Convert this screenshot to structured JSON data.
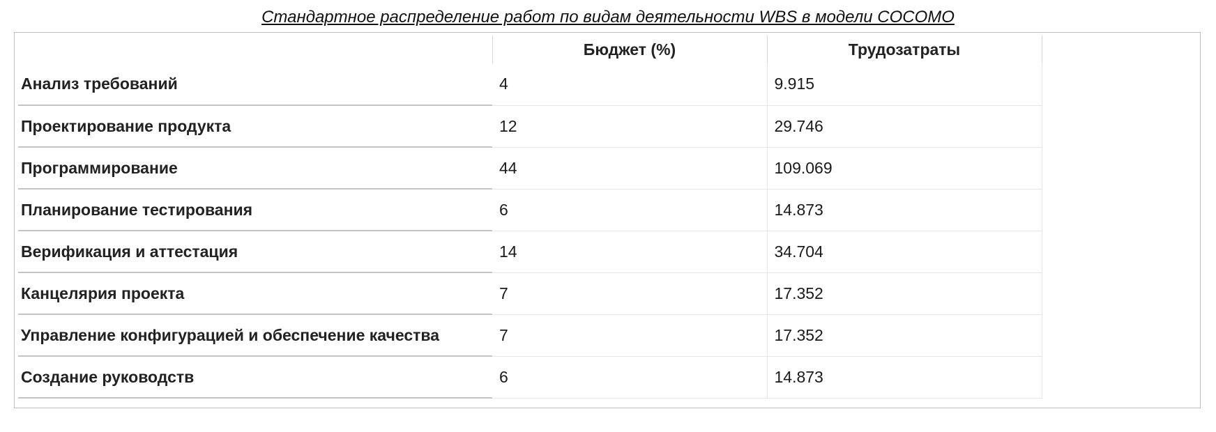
{
  "caption": "Стандартное распределение работ по видам деятельности WBS в модели COCOMO",
  "table": {
    "corner": "",
    "columns": [
      "Бюджет (%)",
      "Трудозатраты"
    ],
    "rows": [
      {
        "label": "Анализ требований",
        "budget": "4",
        "effort": "9.915"
      },
      {
        "label": "Проектирование продукта",
        "budget": "12",
        "effort": "29.746"
      },
      {
        "label": "Программирование",
        "budget": "44",
        "effort": "109.069"
      },
      {
        "label": "Планирование тестирования",
        "budget": "6",
        "effort": "14.873"
      },
      {
        "label": "Верификация и аттестация",
        "budget": "14",
        "effort": "34.704"
      },
      {
        "label": "Канцелярия проекта",
        "budget": "7",
        "effort": "17.352"
      },
      {
        "label": "Управление конфигурацией и обеспечение качества",
        "budget": "7",
        "effort": "17.352"
      },
      {
        "label": "Создание руководств",
        "budget": "6",
        "effort": "14.873"
      }
    ]
  }
}
